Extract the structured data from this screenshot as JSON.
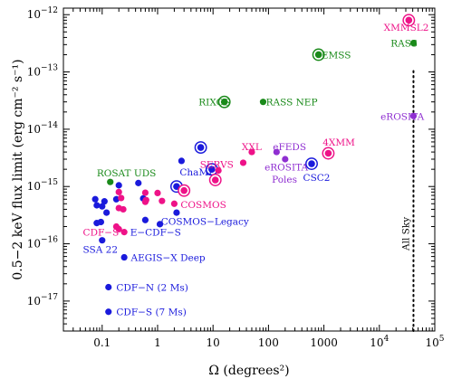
{
  "chart_data": {
    "type": "scatter",
    "title": "",
    "xlabel": "Ω (degrees²)",
    "ylabel": "0.5−2 keV flux limit (erg cm⁻² s⁻¹)",
    "x_scale": "log",
    "y_scale": "log",
    "xlim": [
      0.02,
      100000
    ],
    "ylim": [
      3e-18,
      1.3e-12
    ],
    "x_ticks": [
      {
        "value": 0.1,
        "label": "0.1",
        "sup": ""
      },
      {
        "value": 1,
        "label": "1",
        "sup": ""
      },
      {
        "value": 10,
        "label": "10",
        "sup": ""
      },
      {
        "value": 100,
        "label": "100",
        "sup": ""
      },
      {
        "value": 1000,
        "label": "1000",
        "sup": ""
      },
      {
        "value": 10000,
        "label": "10",
        "sup": "4"
      },
      {
        "value": 100000,
        "label": "10",
        "sup": "5"
      }
    ],
    "y_ticks": [
      {
        "value": 1e-17,
        "label": "10",
        "sup": "−17"
      },
      {
        "value": 1e-16,
        "label": "10",
        "sup": "−16"
      },
      {
        "value": 1e-15,
        "label": "10",
        "sup": "−15"
      },
      {
        "value": 1e-14,
        "label": "10",
        "sup": "−14"
      },
      {
        "value": 1e-13,
        "label": "10",
        "sup": "−13"
      },
      {
        "value": 1e-12,
        "label": "10",
        "sup": "−12"
      }
    ],
    "colors": {
      "blue": "#1a1adc",
      "pink": "#ee1288",
      "green": "#1a8a1a",
      "purple": "#8f2fd1",
      "black": "#000000"
    },
    "all_sky": {
      "x": 41253,
      "label": "All Sky"
    },
    "points": [
      {
        "x": 0.075,
        "y": 6e-16,
        "color": "blue"
      },
      {
        "x": 0.08,
        "y": 4.7e-16,
        "color": "blue"
      },
      {
        "x": 0.1,
        "y": 4.5e-16,
        "color": "blue"
      },
      {
        "x": 0.11,
        "y": 5.5e-16,
        "color": "blue"
      },
      {
        "x": 0.12,
        "y": 3.5e-16,
        "color": "blue"
      },
      {
        "x": 0.095,
        "y": 2.4e-16,
        "color": "blue"
      },
      {
        "x": 0.08,
        "y": 2.3e-16,
        "color": "blue"
      },
      {
        "x": 0.18,
        "y": 6e-16,
        "color": "blue"
      },
      {
        "x": 0.2,
        "y": 1.05e-15,
        "color": "blue"
      },
      {
        "x": 0.45,
        "y": 1.15e-15,
        "color": "blue"
      },
      {
        "x": 0.55,
        "y": 6.2e-16,
        "color": "blue"
      },
      {
        "x": 0.6,
        "y": 2.6e-16,
        "color": "blue"
      },
      {
        "x": 1.1,
        "y": 2.2e-16,
        "color": "blue"
      },
      {
        "x": 2.2,
        "y": 3.5e-16,
        "color": "blue"
      },
      {
        "x": 2.7,
        "y": 2.8e-15,
        "color": "blue"
      },
      {
        "x": 8.5,
        "y": 1.8e-15,
        "color": "blue"
      },
      {
        "x": 0.25,
        "y": 5.8e-17,
        "color": "blue"
      },
      {
        "x": 0.13,
        "y": 1.75e-17,
        "color": "blue"
      },
      {
        "x": 0.13,
        "y": 6.5e-18,
        "color": "blue"
      },
      {
        "x": 0.1,
        "y": 1.15e-16,
        "color": "blue"
      },
      {
        "x": 2.2,
        "y": 1e-15,
        "color": "blue",
        "ring": true
      },
      {
        "x": 6.0,
        "y": 4.8e-15,
        "color": "blue",
        "ring": true
      },
      {
        "x": 9.5,
        "y": 2e-15,
        "color": "blue",
        "ring": true
      },
      {
        "x": 600,
        "y": 2.5e-15,
        "color": "blue",
        "ring": true
      },
      {
        "x": 0.2,
        "y": 8e-16,
        "color": "pink"
      },
      {
        "x": 0.22,
        "y": 6.3e-16,
        "color": "pink"
      },
      {
        "x": 0.2,
        "y": 4.2e-16,
        "color": "pink"
      },
      {
        "x": 0.24,
        "y": 4e-16,
        "color": "pink"
      },
      {
        "x": 0.2,
        "y": 1.8e-16,
        "color": "pink"
      },
      {
        "x": 0.25,
        "y": 1.6e-16,
        "color": "pink"
      },
      {
        "x": 0.18,
        "y": 2e-16,
        "color": "pink"
      },
      {
        "x": 0.6,
        "y": 7.8e-16,
        "color": "pink"
      },
      {
        "x": 0.6,
        "y": 5.4e-16,
        "color": "pink"
      },
      {
        "x": 0.62,
        "y": 5.8e-16,
        "color": "pink"
      },
      {
        "x": 1.0,
        "y": 7.7e-16,
        "color": "pink"
      },
      {
        "x": 1.2,
        "y": 5.6e-16,
        "color": "pink"
      },
      {
        "x": 2.0,
        "y": 5e-16,
        "color": "pink"
      },
      {
        "x": 12.5,
        "y": 1.9e-15,
        "color": "pink"
      },
      {
        "x": 35,
        "y": 2.6e-15,
        "color": "pink"
      },
      {
        "x": 50,
        "y": 4e-15,
        "color": "pink"
      },
      {
        "x": 3.0,
        "y": 8.5e-16,
        "color": "pink",
        "ring": true
      },
      {
        "x": 11,
        "y": 1.3e-15,
        "color": "pink",
        "ring": true
      },
      {
        "x": 1200,
        "y": 3.8e-15,
        "color": "pink",
        "ring": true
      },
      {
        "x": 34000,
        "y": 8e-13,
        "color": "pink",
        "ring": true
      },
      {
        "x": 0.14,
        "y": 1.2e-15,
        "color": "green"
      },
      {
        "x": 80,
        "y": 3e-14,
        "color": "green"
      },
      {
        "x": 16,
        "y": 3e-14,
        "color": "green",
        "ring": true
      },
      {
        "x": 800,
        "y": 2e-13,
        "color": "green",
        "ring": true
      },
      {
        "x": 41253,
        "y": 3.2e-13,
        "color": "green"
      },
      {
        "x": 41253,
        "y": 1.7e-14,
        "color": "purple"
      },
      {
        "x": 200,
        "y": 3e-15,
        "color": "purple"
      },
      {
        "x": 140,
        "y": 4e-15,
        "color": "purple"
      }
    ],
    "labels": [
      {
        "text": "SSA 22",
        "color": "blue",
        "x": 0.045,
        "y": 8e-17
      },
      {
        "text": "E−CDF−S",
        "color": "blue",
        "x": 0.32,
        "y": 1.6e-16
      },
      {
        "text": "AEGIS−X Deep",
        "color": "blue",
        "x": 0.33,
        "y": 5.8e-17
      },
      {
        "text": "CDF−N (2 Ms)",
        "color": "blue",
        "x": 0.18,
        "y": 1.75e-17
      },
      {
        "text": "CDF−S (7 Ms)",
        "color": "blue",
        "x": 0.18,
        "y": 6.5e-18
      },
      {
        "text": "COSMOS−Legacy",
        "color": "blue",
        "x": 1.15,
        "y": 2.5e-16
      },
      {
        "text": "ChaMP",
        "color": "blue",
        "x": 2.5,
        "y": 1.8e-15
      },
      {
        "text": "CSC2",
        "color": "blue",
        "x": 420,
        "y": 1.45e-15
      },
      {
        "text": "CDF−S",
        "color": "pink",
        "x": 0.045,
        "y": 1.6e-16
      },
      {
        "text": "COSMOS",
        "color": "pink",
        "x": 2.6,
        "y": 4.9e-16
      },
      {
        "text": "SERVS",
        "color": "pink",
        "x": 5.8,
        "y": 2.45e-15
      },
      {
        "text": "XXL",
        "color": "pink",
        "x": 33,
        "y": 5e-15
      },
      {
        "text": "4XMM",
        "color": "pink",
        "x": 950,
        "y": 6e-15
      },
      {
        "text": "XMMSL2",
        "color": "pink",
        "x": 12000,
        "y": 6.1e-13
      },
      {
        "text": "ROSAT UDS",
        "color": "green",
        "x": 0.08,
        "y": 1.75e-15
      },
      {
        "text": "RIXOS",
        "color": "green",
        "x": 5.5,
        "y": 3e-14
      },
      {
        "text": "RASS NEP",
        "color": "green",
        "x": 90,
        "y": 3e-14
      },
      {
        "text": "EMSS",
        "color": "green",
        "x": 900,
        "y": 2e-13
      },
      {
        "text": "RASS",
        "color": "green",
        "x": 16000,
        "y": 3.2e-13
      },
      {
        "text": "eROSITA",
        "color": "purple",
        "x": 10500,
        "y": 1.7e-14
      },
      {
        "text": "eFEDS",
        "color": "purple",
        "x": 120,
        "y": 5e-15
      },
      {
        "text": "eROSITA",
        "color": "purple",
        "x": 85,
        "y": 2.2e-15
      },
      {
        "text": "Poles",
        "color": "purple",
        "x": 115,
        "y": 1.35e-15
      }
    ]
  }
}
